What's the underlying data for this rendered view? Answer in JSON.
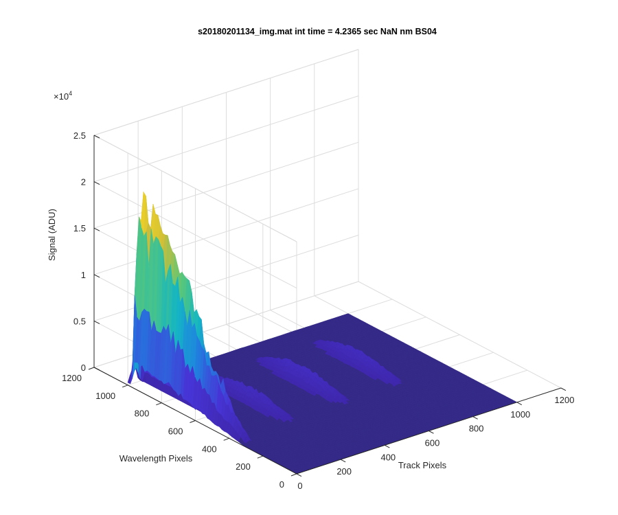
{
  "chart_data": {
    "type": "surface",
    "title": "s20180201134_img.mat int time = 4.2365 sec  NaN nm BS04",
    "xlabel": "Track Pixels",
    "ylabel": "Wavelength Pixels",
    "zlabel": "Signal (ADU)",
    "z_exponent_label": "×10",
    "z_exponent_power": "4",
    "xlim": [
      0,
      1200
    ],
    "ylim": [
      0,
      1200
    ],
    "zlim": [
      0,
      25000
    ],
    "x_ticks": [
      "0",
      "200",
      "400",
      "600",
      "800",
      "1000",
      "1200"
    ],
    "y_ticks": [
      "0",
      "200",
      "400",
      "600",
      "800",
      "1000",
      "1200"
    ],
    "z_ticks": [
      "0",
      "0.5",
      "1",
      "1.5",
      "2",
      "2.5"
    ],
    "grid": true,
    "colormap": [
      "#3e26a8",
      "#4734d6",
      "#1f83e0",
      "#14b6c3",
      "#58c77a",
      "#cdbd39",
      "#f5d525"
    ],
    "floor_color": "#352a87",
    "surface_data_range": {
      "track": [
        0,
        1000
      ],
      "wavelength": [
        0,
        1000
      ]
    },
    "peaks": [
      {
        "track_center": 25,
        "track_width": 22,
        "max_signal": 19500,
        "wavelength_start": 300,
        "wavelength_end": 1000
      },
      {
        "track_center": 250,
        "track_width": 40,
        "max_signal": 1700,
        "wavelength_start": 330,
        "wavelength_end": 1000
      },
      {
        "track_center": 500,
        "track_width": 40,
        "max_signal": 1900,
        "wavelength_start": 330,
        "wavelength_end": 1000
      },
      {
        "track_center": 750,
        "track_width": 40,
        "max_signal": 1600,
        "wavelength_start": 330,
        "wavelength_end": 1000
      }
    ]
  }
}
